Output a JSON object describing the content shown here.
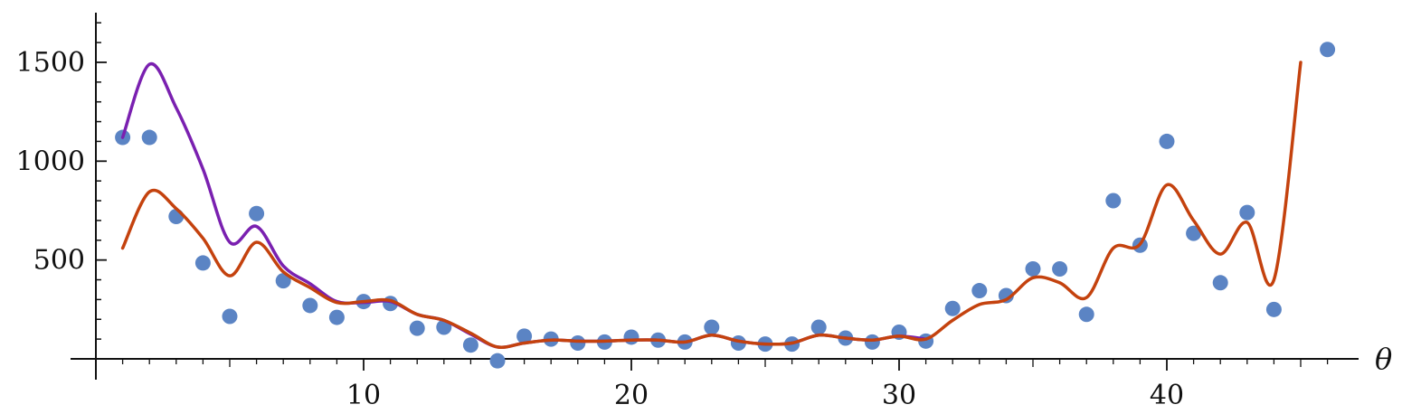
{
  "chart_data": {
    "type": "scatter",
    "title": "",
    "xlabel": "θ",
    "ylabel": "",
    "xlim": [
      0,
      47
    ],
    "ylim": [
      0,
      1750
    ],
    "x_ticks": [
      10,
      20,
      30,
      40
    ],
    "y_ticks": [
      500,
      1000,
      1500
    ],
    "grid": false,
    "legend": "none",
    "colors": {
      "points": "#5b84c4",
      "purple": "#7a20b0",
      "orange": "#c4420e"
    },
    "points": {
      "x": [
        1,
        2,
        3,
        4,
        5,
        6,
        7,
        8,
        9,
        10,
        11,
        12,
        13,
        14,
        15,
        16,
        17,
        18,
        19,
        20,
        21,
        22,
        23,
        24,
        25,
        26,
        27,
        28,
        29,
        30,
        31,
        32,
        33,
        34,
        35,
        36,
        37,
        38,
        39,
        40,
        41,
        42,
        43,
        44,
        46
      ],
      "y": [
        1120,
        1120,
        720,
        485,
        215,
        735,
        395,
        270,
        210,
        290,
        280,
        155,
        160,
        70,
        -10,
        115,
        100,
        80,
        85,
        110,
        95,
        85,
        160,
        80,
        75,
        75,
        160,
        105,
        85,
        135,
        90,
        255,
        345,
        320,
        455,
        455,
        225,
        800,
        575,
        1100,
        635,
        385,
        740,
        250,
        1565
      ]
    },
    "series": [
      {
        "x": [
          1,
          2,
          3,
          4,
          5,
          6,
          7,
          8,
          9,
          10,
          11,
          12,
          13,
          14,
          15,
          16,
          17,
          18,
          19,
          20,
          21,
          22,
          23,
          24,
          25,
          26,
          27,
          28,
          29,
          30,
          31
        ],
        "y": [
          1120,
          1490,
          1270,
          960,
          590,
          670,
          470,
          380,
          290,
          285,
          290,
          225,
          195,
          125,
          60,
          80,
          95,
          90,
          90,
          95,
          95,
          85,
          120,
          90,
          75,
          80,
          120,
          105,
          95,
          115,
          100
        ]
      },
      {
        "x": [
          1,
          2,
          3,
          4,
          5,
          6,
          7,
          8,
          9,
          10,
          11,
          12,
          13,
          14,
          15,
          16,
          17,
          18,
          19,
          20,
          21,
          22,
          23,
          24,
          25,
          26,
          27,
          28,
          29,
          30,
          31,
          32,
          33,
          34,
          35,
          36,
          37,
          38,
          39,
          40,
          41,
          42,
          43,
          44,
          45
        ],
        "y": [
          560,
          845,
          760,
          610,
          420,
          590,
          440,
          360,
          285,
          290,
          295,
          225,
          195,
          130,
          60,
          80,
          95,
          90,
          90,
          95,
          95,
          85,
          120,
          90,
          75,
          80,
          120,
          105,
          95,
          115,
          100,
          195,
          275,
          300,
          410,
          385,
          310,
          560,
          580,
          880,
          700,
          530,
          690,
          400,
          1500
        ]
      }
    ]
  }
}
